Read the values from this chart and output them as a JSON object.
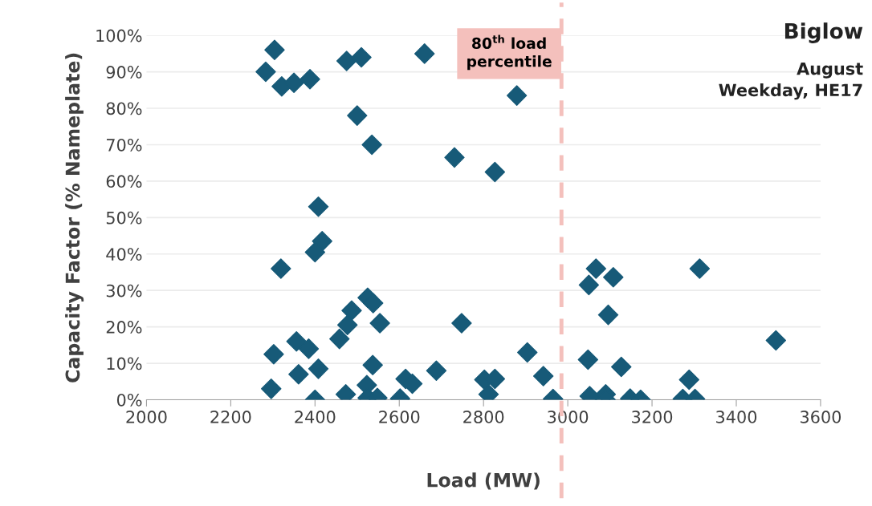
{
  "chart_data": {
    "type": "scatter",
    "title": "Biglow",
    "subtitle": "August\nWeekday, HE17",
    "xlabel": "Load (MW)",
    "ylabel": "Capacity Factor (% Nameplate)",
    "xlim": [
      2000,
      3600
    ],
    "xticks": [
      2000,
      2200,
      2400,
      2600,
      2800,
      3000,
      3200,
      3400,
      3600
    ],
    "ylim": [
      0,
      100
    ],
    "yticks": [
      {
        "value": 0,
        "label": "0%"
      },
      {
        "value": 10,
        "label": "10%"
      },
      {
        "value": 20,
        "label": "20%"
      },
      {
        "value": 30,
        "label": "30%"
      },
      {
        "value": 40,
        "label": "40%"
      },
      {
        "value": 50,
        "label": "50%"
      },
      {
        "value": 60,
        "label": "60%"
      },
      {
        "value": 70,
        "label": "70%"
      },
      {
        "value": 80,
        "label": "80%"
      },
      {
        "value": 90,
        "label": "90%"
      },
      {
        "value": 100,
        "label": "100%"
      }
    ],
    "grid": "y",
    "marker": "diamond",
    "ref_lines": [
      {
        "axis": "x",
        "value": 2985,
        "label": "80$^{th}$ load\npercentile",
        "color": "#f4c0bc",
        "line_style": "dashed"
      }
    ],
    "series": [
      {
        "color": "#175a78",
        "x": [
          2283,
          2304,
          2321,
          2350,
          2388,
          2475,
          2510,
          2500,
          2535,
          2879,
          2731,
          2827,
          2660,
          2408,
          2417,
          2400,
          2319,
          2525,
          2538,
          2487,
          2477,
          2458,
          2554,
          2748,
          2356,
          2385,
          2302,
          2296,
          2361,
          2408,
          2400,
          2473,
          2537,
          2523,
          2525,
          2548,
          2615,
          2631,
          2602,
          2688,
          2904,
          2942,
          2802,
          2827,
          2812,
          2965,
          3067,
          3050,
          3108,
          3096,
          3313,
          3494,
          3048,
          3127,
          3288,
          3052,
          3090,
          3090,
          3148,
          3173,
          3273,
          3302
        ],
        "values": [
          90,
          96,
          86,
          87,
          88,
          93,
          94,
          78,
          70,
          83.5,
          66.5,
          62.5,
          95,
          53,
          43.5,
          40.5,
          36,
          28,
          26.5,
          24.5,
          20.5,
          16.7,
          21,
          21,
          16,
          14,
          12.5,
          3,
          7,
          8.5,
          0,
          1.5,
          9.5,
          4,
          0.5,
          0.5,
          5.7,
          4.4,
          0.3,
          8,
          13,
          6.5,
          5.5,
          5.7,
          1.5,
          0.2,
          36,
          31.5,
          33.6,
          23.3,
          36,
          16.3,
          11,
          9,
          5.5,
          1,
          1.5,
          0,
          0.3,
          0,
          0.2,
          0.2
        ]
      }
    ]
  }
}
